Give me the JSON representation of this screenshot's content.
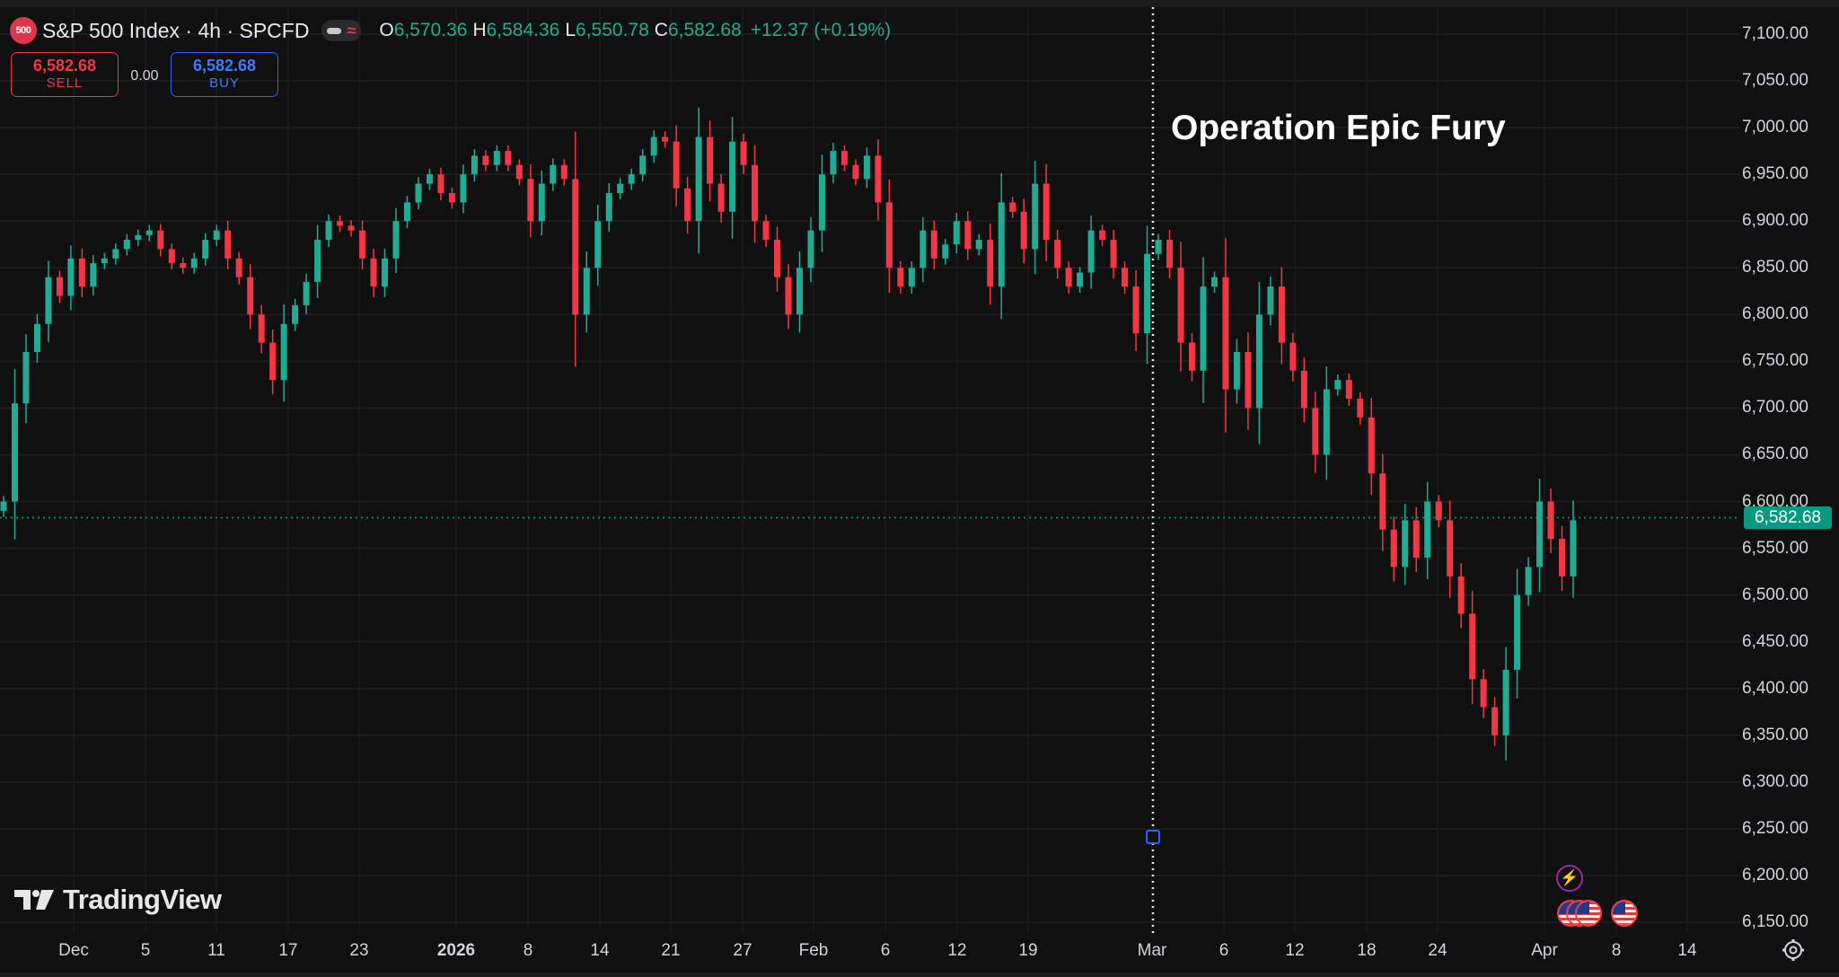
{
  "header": {
    "symbol_badge": "500",
    "title": "S&P 500 Index · 4h · SPCFD",
    "ohlc": {
      "o_label": "O",
      "o": "6,570.36",
      "h_label": "H",
      "h": "6,584.36",
      "l_label": "L",
      "l": "6,550.78",
      "c_label": "C",
      "c": "6,582.68",
      "change": "+12.37 (+0.19%)"
    }
  },
  "trade": {
    "sell_price": "6,582.68",
    "sell_label": "SELL",
    "spread": "0.00",
    "buy_price": "6,582.68",
    "buy_label": "BUY"
  },
  "price_tag": "6,582.68",
  "annotation": "Operation Epic Fury",
  "branding": "TradingView",
  "events": {
    "bolt_icon": "lightning-icon",
    "flag_icon": "us-flag-icon"
  },
  "colors": {
    "up": "#22ab94",
    "down": "#f23645",
    "background": "#101010",
    "accent": "#2962ff"
  },
  "chart_data": {
    "type": "candlestick",
    "timeframe": "4h",
    "y_axis_labels": [
      "7,100.00",
      "7,050.00",
      "7,000.00",
      "6,950.00",
      "6,900.00",
      "6,850.00",
      "6,800.00",
      "6,750.00",
      "6,700.00",
      "6,650.00",
      "6,600.00",
      "6,550.00",
      "6,500.00",
      "6,450.00",
      "6,400.00",
      "6,350.00",
      "6,300.00",
      "6,250.00",
      "6,200.00",
      "6,150.00"
    ],
    "x_axis_labels": [
      "Dec",
      "5",
      "11",
      "17",
      "23",
      "2026",
      "8",
      "14",
      "21",
      "27",
      "Feb",
      "6",
      "12",
      "19",
      "Mar",
      "6",
      "12",
      "18",
      "24",
      "Apr",
      "8",
      "14"
    ],
    "x_axis_bold": [
      "2026"
    ],
    "ylim": [
      6143,
      7110
    ],
    "last_price": 6582.68,
    "vertical_marker_at": "Mar",
    "grid": true,
    "closes": [
      6600,
      6705,
      6760,
      6790,
      6840,
      6820,
      6860,
      6830,
      6855,
      6860,
      6870,
      6880,
      6885,
      6890,
      6870,
      6855,
      6850,
      6860,
      6880,
      6890,
      6860,
      6840,
      6800,
      6770,
      6730,
      6790,
      6810,
      6835,
      6880,
      6900,
      6895,
      6890,
      6860,
      6830,
      6860,
      6900,
      6920,
      6940,
      6950,
      6930,
      6920,
      6950,
      6970,
      6960,
      6975,
      6960,
      6945,
      6900,
      6940,
      6960,
      6945,
      6800,
      6850,
      6900,
      6930,
      6940,
      6950,
      6970,
      6990,
      6985,
      6935,
      6900,
      6990,
      6940,
      6910,
      6985,
      6960,
      6900,
      6880,
      6840,
      6800,
      6850,
      6890,
      6950,
      6975,
      6960,
      6945,
      6970,
      6920,
      6850,
      6830,
      6850,
      6890,
      6860,
      6875,
      6900,
      6870,
      6880,
      6830,
      6920,
      6910,
      6870,
      6940,
      6880,
      6850,
      6830,
      6845,
      6890,
      6880,
      6850,
      6830,
      6780,
      6865,
      6880,
      6850,
      6770,
      6740,
      6830,
      6840,
      6720,
      6760,
      6700,
      6800,
      6830,
      6770,
      6740,
      6700,
      6650,
      6720,
      6730,
      6710,
      6690,
      6630,
      6570,
      6530,
      6580,
      6540,
      6600,
      6580,
      6520,
      6480,
      6410,
      6380,
      6350,
      6420,
      6500,
      6530,
      6600,
      6560,
      6520,
      6580
    ]
  }
}
